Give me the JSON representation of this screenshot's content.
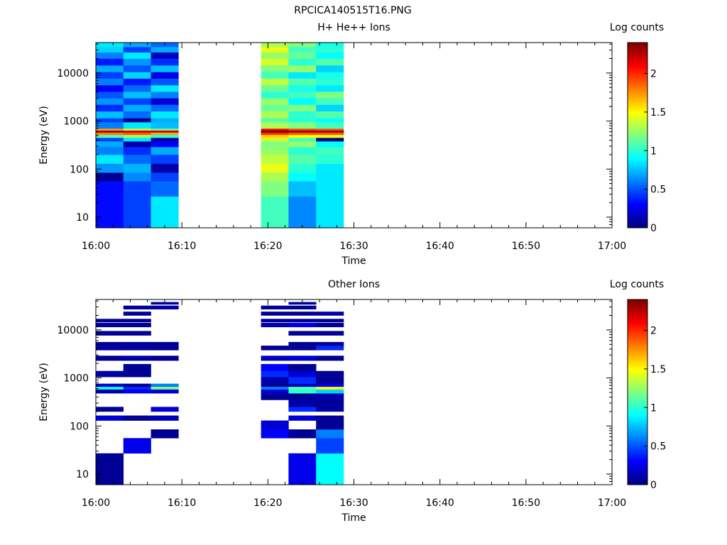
{
  "figure_title": "RPCICA140515T16.PNG",
  "chart_data": [
    {
      "type": "heatmap",
      "title": "H+ He++ Ions",
      "xlabel": "Time",
      "ylabel": "Energy (eV)",
      "x_ticks": [
        "16:00",
        "16:10",
        "16:20",
        "16:30",
        "16:40",
        "16:50",
        "17:00"
      ],
      "xlim_minutes": [
        0,
        60
      ],
      "y_scale": "log",
      "ylim": [
        6,
        43000
      ],
      "y_ticks": [
        {
          "v": 10,
          "label": "10"
        },
        {
          "v": 100,
          "label": "100"
        },
        {
          "v": 1000,
          "label": "1000"
        },
        {
          "v": 10000,
          "label": "10000"
        }
      ],
      "colorbar_label": "Log counts",
      "colorbar_range": [
        0,
        2.4
      ],
      "colorbar_ticks": [
        {
          "v": 0,
          "label": "0"
        },
        {
          "v": 0.5,
          "label": "0.5"
        },
        {
          "v": 1,
          "label": "1"
        },
        {
          "v": 1.5,
          "label": "1.5"
        },
        {
          "v": 2,
          "label": "2"
        }
      ],
      "colormap": "jet",
      "bands": [
        {
          "e0": 6,
          "e1": 27,
          "vals": [
            0.32,
            0.45,
            0.85,
            null,
            null,
            null,
            1.05,
            0.62,
            0.85
          ]
        },
        {
          "e0": 27,
          "e1": 56,
          "vals": [
            0.32,
            0.45,
            0.55,
            null,
            null,
            null,
            1.2,
            0.75,
            0.85
          ]
        },
        {
          "e0": 56,
          "e1": 85,
          "vals": [
            0.05,
            0.62,
            0.45,
            null,
            null,
            null,
            1.3,
            0.9,
            0.85
          ]
        },
        {
          "e0": 85,
          "e1": 130,
          "vals": [
            0.65,
            0.72,
            0.1,
            null,
            null,
            null,
            1.45,
            1.0,
            0.85
          ]
        },
        {
          "e0": 130,
          "e1": 200,
          "vals": [
            0.85,
            0.55,
            0.45,
            null,
            null,
            null,
            1.35,
            1.1,
            1.0
          ]
        },
        {
          "e0": 200,
          "e1": 290,
          "vals": [
            0.6,
            0.4,
            0.7,
            null,
            null,
            null,
            1.25,
            1.0,
            1.05
          ]
        },
        {
          "e0": 290,
          "e1": 380,
          "vals": [
            0.7,
            0.1,
            0.3,
            null,
            null,
            null,
            1.2,
            1.25,
            0.9
          ]
        },
        {
          "e0": 380,
          "e1": 450,
          "vals": [
            0.45,
            0.85,
            0.05,
            null,
            null,
            null,
            1.4,
            1.05,
            0.0
          ]
        },
        {
          "e0": 450,
          "e1": 520,
          "vals": [
            1.1,
            1.25,
            1.0,
            null,
            null,
            null,
            1.6,
            1.5,
            1.45
          ]
        },
        {
          "e0": 520,
          "e1": 580,
          "vals": [
            1.8,
            1.9,
            1.7,
            null,
            null,
            null,
            2.0,
            1.9,
            1.9
          ]
        },
        {
          "e0": 580,
          "e1": 640,
          "vals": [
            2.3,
            2.2,
            2.2,
            null,
            null,
            null,
            2.4,
            2.3,
            2.3
          ]
        },
        {
          "e0": 640,
          "e1": 700,
          "vals": [
            1.7,
            1.4,
            1.2,
            null,
            null,
            null,
            2.1,
            1.95,
            1.9
          ]
        },
        {
          "e0": 700,
          "e1": 950,
          "vals": [
            0.6,
            0.85,
            0.75,
            null,
            null,
            null,
            1.3,
            1.2,
            1.05
          ]
        },
        {
          "e0": 950,
          "e1": 1150,
          "vals": [
            0.45,
            0.02,
            0.7,
            null,
            null,
            null,
            1.1,
            1.0,
            0.9
          ]
        },
        {
          "e0": 1150,
          "e1": 1600,
          "vals": [
            0.75,
            0.55,
            0.85,
            null,
            null,
            null,
            1.3,
            1.0,
            1.1
          ]
        },
        {
          "e0": 1600,
          "e1": 2200,
          "vals": [
            0.4,
            0.7,
            0.55,
            null,
            null,
            null,
            1.15,
            1.2,
            0.8
          ]
        },
        {
          "e0": 2200,
          "e1": 3000,
          "vals": [
            0.65,
            0.45,
            0.2,
            null,
            null,
            null,
            1.25,
            0.9,
            1.05
          ]
        },
        {
          "e0": 3000,
          "e1": 4100,
          "vals": [
            0.5,
            0.75,
            0.6,
            null,
            null,
            null,
            1.0,
            1.05,
            1.2
          ]
        },
        {
          "e0": 4100,
          "e1": 5600,
          "vals": [
            0.3,
            0.55,
            0.85,
            null,
            null,
            null,
            1.15,
            0.95,
            0.85
          ]
        },
        {
          "e0": 5600,
          "e1": 7700,
          "vals": [
            0.6,
            0.35,
            0.5,
            null,
            null,
            null,
            1.35,
            1.1,
            1.0
          ]
        },
        {
          "e0": 7700,
          "e1": 10500,
          "vals": [
            0.45,
            0.8,
            0.25,
            null,
            null,
            null,
            1.05,
            0.85,
            0.95
          ]
        },
        {
          "e0": 10500,
          "e1": 14500,
          "vals": [
            0.7,
            0.5,
            0.75,
            null,
            null,
            null,
            1.2,
            1.25,
            0.8
          ]
        },
        {
          "e0": 14500,
          "e1": 20000,
          "vals": [
            0.35,
            0.65,
            0.4,
            null,
            null,
            null,
            1.4,
            1.0,
            1.1
          ]
        },
        {
          "e0": 20000,
          "e1": 27000,
          "vals": [
            0.6,
            0.85,
            0.15,
            null,
            null,
            null,
            1.25,
            1.15,
            0.9
          ]
        },
        {
          "e0": 27000,
          "e1": 35000,
          "vals": [
            0.8,
            0.45,
            0.7,
            null,
            null,
            null,
            1.45,
            1.05,
            1.0
          ]
        },
        {
          "e0": 35000,
          "e1": 43000,
          "vals": [
            0.85,
            0.7,
            0.55,
            null,
            null,
            null,
            1.3,
            1.2,
            0.95
          ]
        }
      ]
    },
    {
      "type": "heatmap",
      "title": "Other Ions",
      "xlabel": "Time",
      "ylabel": "Energy (eV)",
      "x_ticks": [
        "16:00",
        "16:10",
        "16:20",
        "16:30",
        "16:40",
        "16:50",
        "17:00"
      ],
      "xlim_minutes": [
        0,
        60
      ],
      "y_scale": "log",
      "ylim": [
        6,
        43000
      ],
      "y_ticks": [
        {
          "v": 10,
          "label": "10"
        },
        {
          "v": 100,
          "label": "100"
        },
        {
          "v": 1000,
          "label": "1000"
        },
        {
          "v": 10000,
          "label": "10000"
        }
      ],
      "colorbar_label": "Log counts",
      "colorbar_range": [
        0,
        2.4
      ],
      "colorbar_ticks": [
        {
          "v": 0,
          "label": "0"
        },
        {
          "v": 0.5,
          "label": "0.5"
        },
        {
          "v": 1,
          "label": "1"
        },
        {
          "v": 1.5,
          "label": "1.5"
        },
        {
          "v": 2,
          "label": "2"
        }
      ],
      "colormap": "jet",
      "bands": [
        {
          "e0": 6,
          "e1": 27,
          "vals": [
            0.05,
            null,
            null,
            null,
            null,
            null,
            null,
            0.25,
            0.9
          ]
        },
        {
          "e0": 27,
          "e1": 56,
          "vals": [
            null,
            0.25,
            null,
            null,
            null,
            null,
            null,
            null,
            0.45
          ]
        },
        {
          "e0": 56,
          "e1": 85,
          "vals": [
            null,
            null,
            0.05,
            null,
            null,
            null,
            0.3,
            0.05,
            0.6
          ]
        },
        {
          "e0": 85,
          "e1": 130,
          "vals": [
            null,
            null,
            null,
            null,
            null,
            null,
            0.2,
            null,
            0.05
          ]
        },
        {
          "e0": 130,
          "e1": 165,
          "vals": [
            0.2,
            0.05,
            0.15,
            null,
            null,
            null,
            null,
            0.2,
            0.05
          ]
        },
        {
          "e0": 200,
          "e1": 250,
          "vals": [
            0.05,
            null,
            0.2,
            null,
            null,
            null,
            null,
            0.4,
            0.1
          ]
        },
        {
          "e0": 250,
          "e1": 350,
          "vals": [
            null,
            null,
            null,
            null,
            null,
            null,
            null,
            0.1,
            0.05
          ]
        },
        {
          "e0": 350,
          "e1": 480,
          "vals": [
            null,
            null,
            null,
            null,
            null,
            null,
            0.05,
            0.05,
            0.1
          ]
        },
        {
          "e0": 480,
          "e1": 580,
          "vals": [
            0.1,
            0.25,
            0.2,
            null,
            null,
            null,
            0.2,
            1.0,
            0.8
          ]
        },
        {
          "e0": 580,
          "e1": 660,
          "vals": [
            0.95,
            0.4,
            1.2,
            null,
            null,
            null,
            0.6,
            1.1,
            1.5
          ]
        },
        {
          "e0": 660,
          "e1": 760,
          "vals": [
            0.2,
            0.05,
            0.6,
            null,
            null,
            null,
            0.05,
            0.15,
            0.3
          ]
        },
        {
          "e0": 760,
          "e1": 1050,
          "vals": [
            null,
            null,
            null,
            null,
            null,
            null,
            0.1,
            0.4,
            0.05
          ]
        },
        {
          "e0": 1050,
          "e1": 1400,
          "vals": [
            0.1,
            0.05,
            null,
            null,
            null,
            null,
            0.4,
            0.2,
            0.05
          ]
        },
        {
          "e0": 1400,
          "e1": 1950,
          "vals": [
            null,
            0.05,
            null,
            null,
            null,
            null,
            0.3,
            0.05,
            null
          ]
        },
        {
          "e0": 2300,
          "e1": 2900,
          "vals": [
            0.05,
            0.1,
            0.05,
            null,
            null,
            null,
            0.15,
            0.2,
            0.05
          ]
        },
        {
          "e0": 3800,
          "e1": 4700,
          "vals": [
            0.1,
            0.05,
            0.05,
            null,
            null,
            null,
            0.05,
            0.05,
            0.4
          ]
        },
        {
          "e0": 4700,
          "e1": 5600,
          "vals": [
            0.05,
            0.1,
            0.05,
            null,
            null,
            null,
            null,
            0.05,
            0.05
          ]
        },
        {
          "e0": 7700,
          "e1": 9500,
          "vals": [
            0.05,
            0.05,
            null,
            null,
            null,
            null,
            null,
            0.05,
            0.05
          ]
        },
        {
          "e0": 11500,
          "e1": 14000,
          "vals": [
            0.05,
            0.05,
            null,
            null,
            null,
            null,
            0.1,
            0.25,
            0.05
          ]
        },
        {
          "e0": 14500,
          "e1": 17000,
          "vals": [
            0.05,
            0.05,
            null,
            null,
            null,
            null,
            0.05,
            0.05,
            0.05
          ]
        },
        {
          "e0": 20000,
          "e1": 24000,
          "vals": [
            null,
            0.05,
            null,
            null,
            null,
            null,
            0.05,
            0.05,
            0.1
          ]
        },
        {
          "e0": 27000,
          "e1": 32000,
          "vals": [
            null,
            0.05,
            0.1,
            null,
            null,
            null,
            0.05,
            0.05,
            null
          ]
        },
        {
          "e0": 34000,
          "e1": 38000,
          "vals": [
            null,
            null,
            0.05,
            null,
            null,
            null,
            null,
            0.05,
            null
          ]
        }
      ]
    }
  ]
}
